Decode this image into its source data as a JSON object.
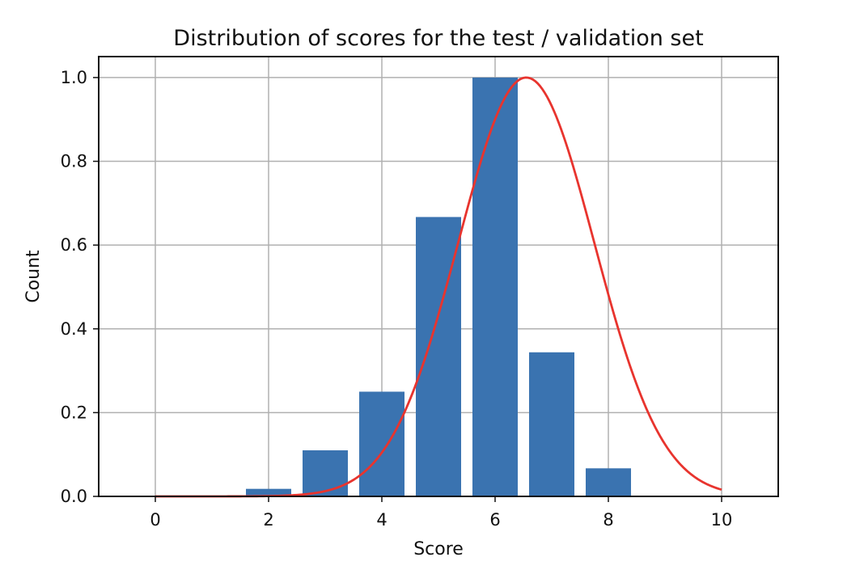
{
  "chart_data": {
    "type": "bar",
    "title": "Distribution of scores for the test / validation set",
    "xlabel": "Score",
    "ylabel": "Count",
    "xlim": [
      -1,
      11
    ],
    "ylim": [
      0,
      1.05
    ],
    "xticks": [
      0,
      2,
      4,
      6,
      8,
      10
    ],
    "yticks": [
      0.0,
      0.2,
      0.4,
      0.6,
      0.8,
      1.0
    ],
    "xtick_labels": [
      "0",
      "2",
      "4",
      "6",
      "8",
      "10"
    ],
    "ytick_labels": [
      "0.0",
      "0.2",
      "0.4",
      "0.6",
      "0.8",
      "1.0"
    ],
    "grid": true,
    "bar_width": 0.8,
    "bars": {
      "x": [
        0,
        1,
        2,
        3,
        4,
        5,
        6,
        7,
        8,
        9,
        10
      ],
      "values": [
        0.0,
        0.0,
        0.018,
        0.11,
        0.25,
        0.667,
        1.0,
        0.344,
        0.067,
        0.0,
        0.0
      ],
      "color": "#3a73b0"
    },
    "curve": {
      "type": "gaussian",
      "mean": 6.55,
      "std": 1.2,
      "peak": 1.0,
      "x_range": [
        0,
        10
      ],
      "color": "#e8342e"
    }
  }
}
